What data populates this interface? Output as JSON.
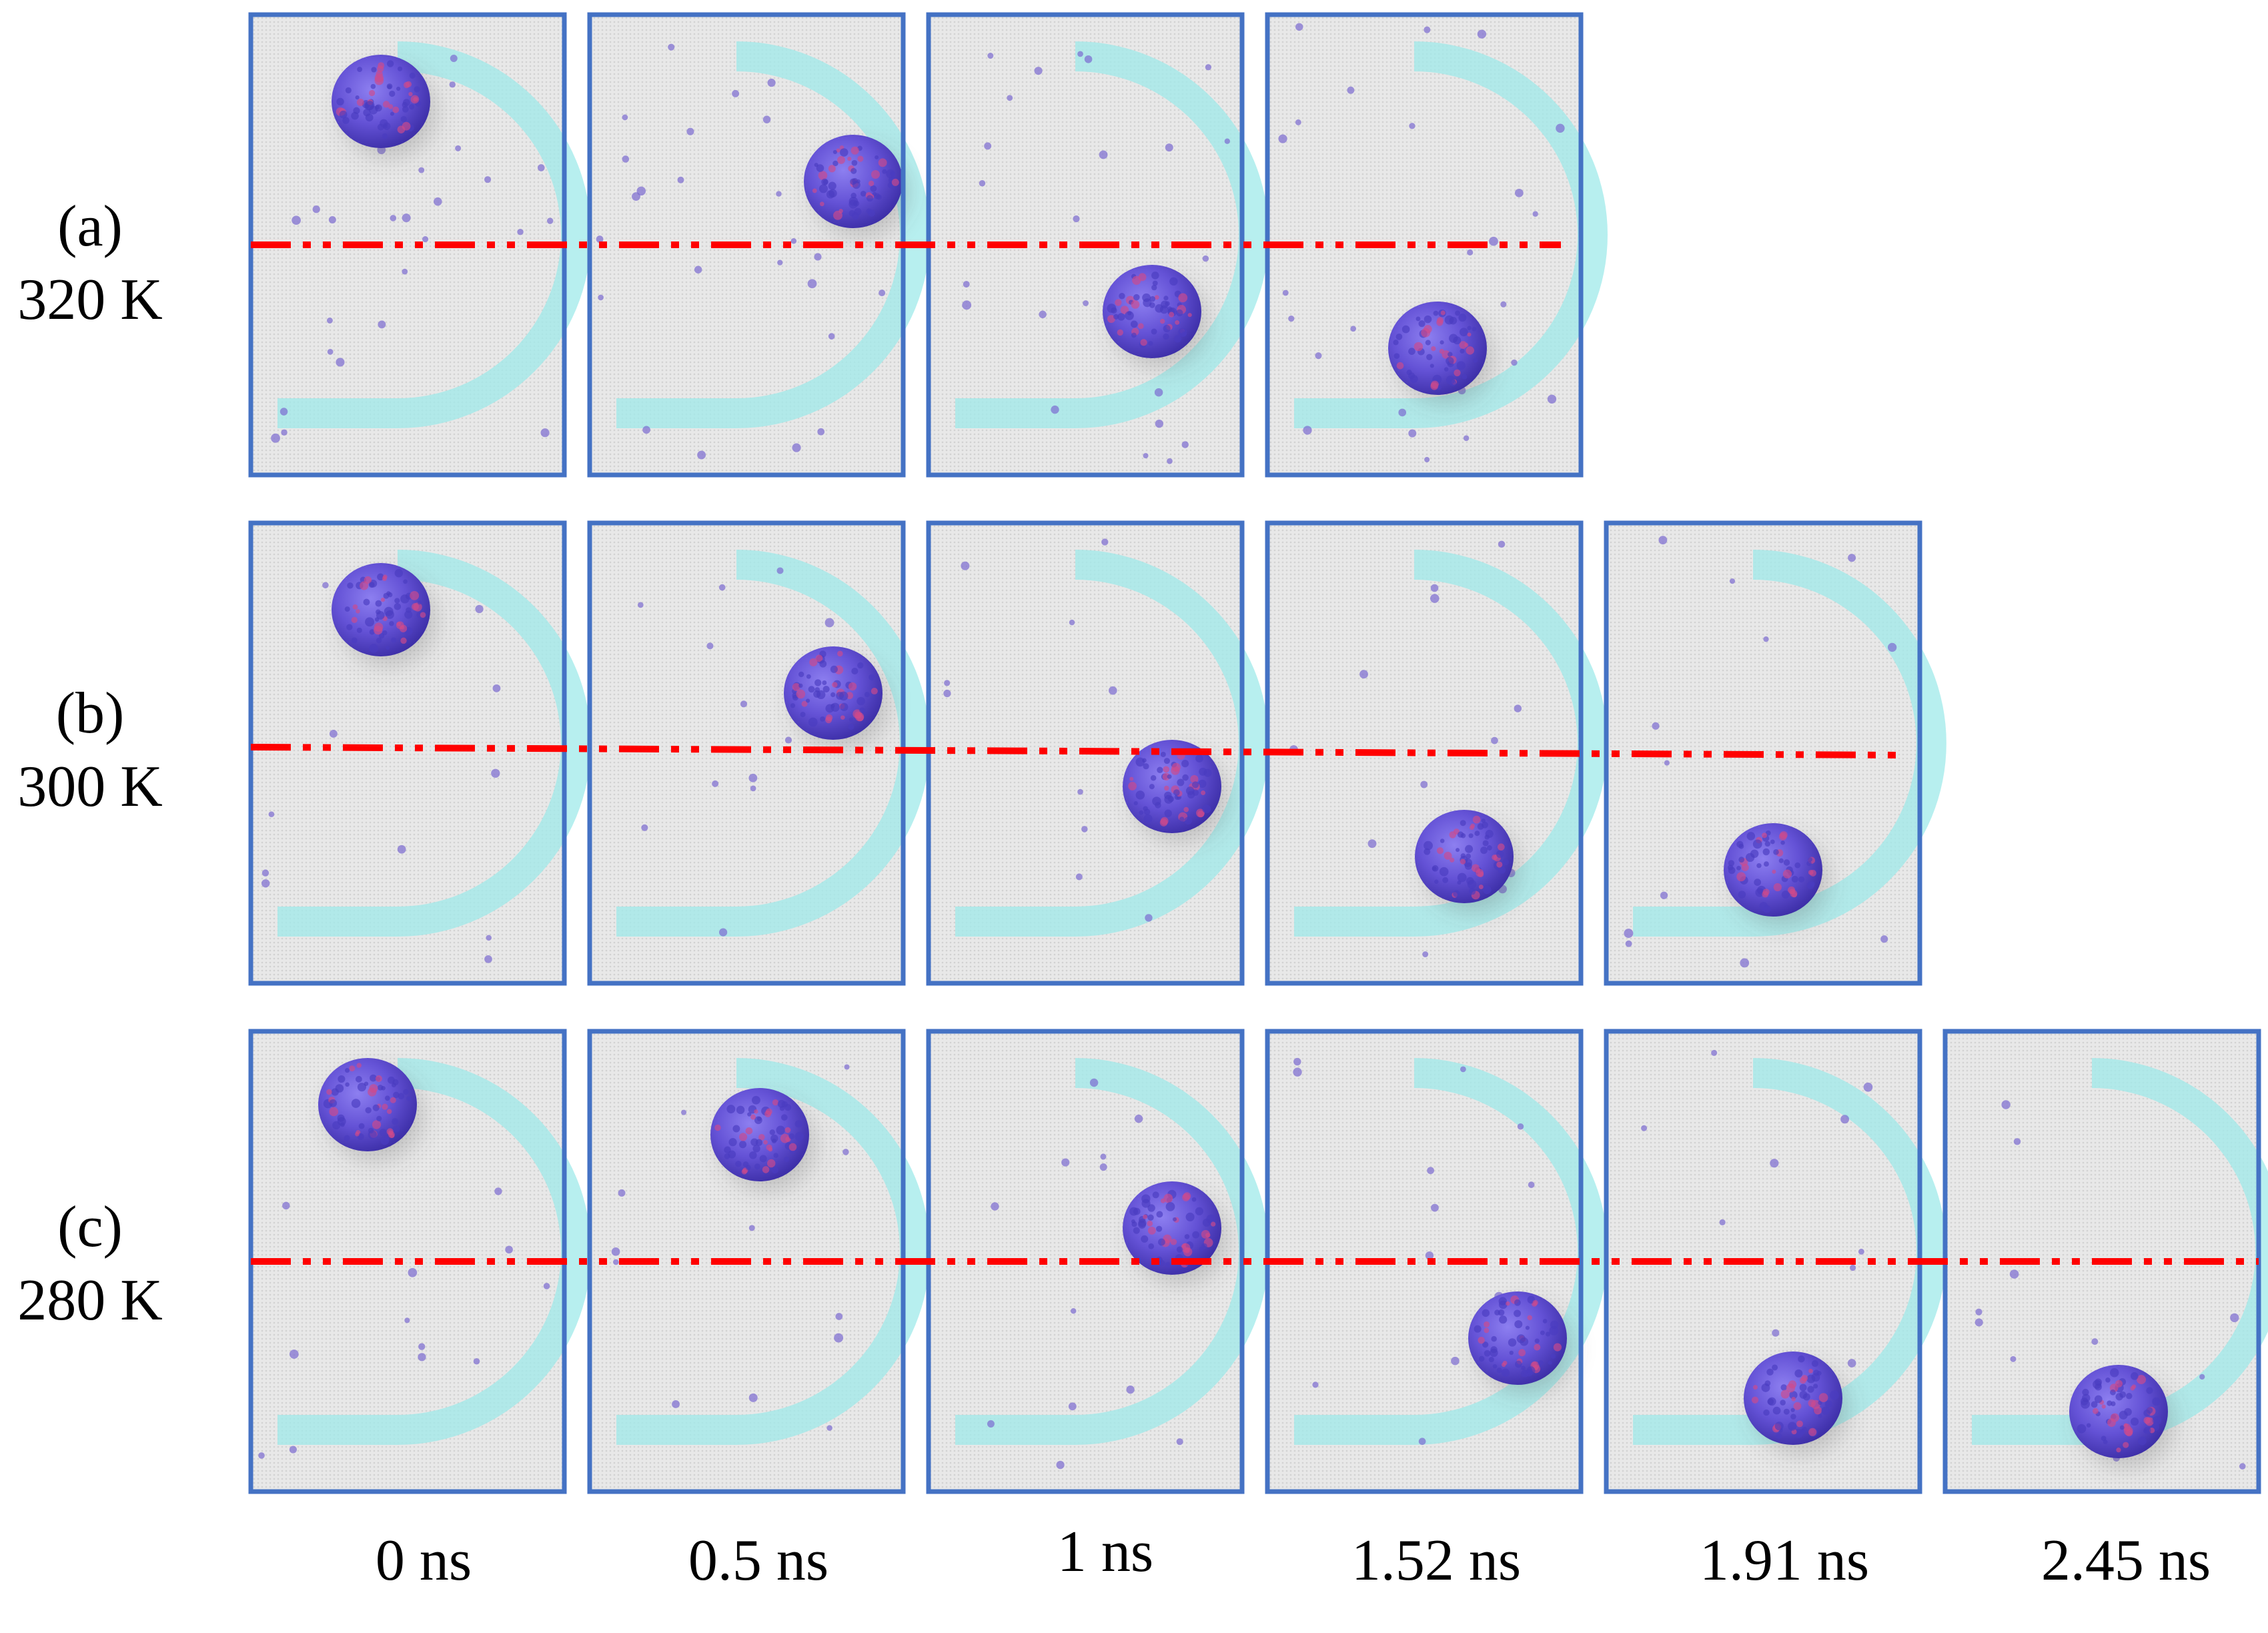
{
  "figure": {
    "rows": [
      {
        "id": "a",
        "tag": "(a)",
        "temperature": "320 K",
        "frame_count": 4
      },
      {
        "id": "b",
        "tag": "(b)",
        "temperature": "300 K",
        "frame_count": 5
      },
      {
        "id": "c",
        "tag": "(c)",
        "temperature": "280 K",
        "frame_count": 6
      }
    ],
    "time_labels": [
      "0 ns",
      "0.5 ns",
      "1 ns",
      "1.52 ns",
      "1.91 ns",
      "2.45 ns"
    ],
    "colors": {
      "frame_border": "#4472c4",
      "panel_background": "#e6e6e6",
      "track": "#9feaea",
      "droplet": "#6a5cd8",
      "droplet_highlight": "#d04a8a",
      "reference_line": "#ff0000",
      "molecule": "#7a6ad0"
    }
  }
}
